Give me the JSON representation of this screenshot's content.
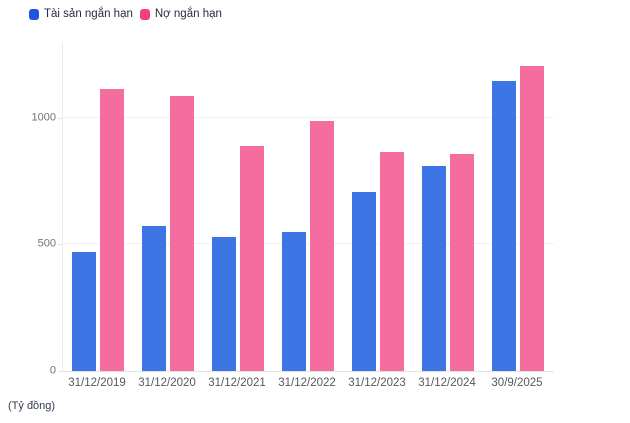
{
  "chart_data": {
    "type": "bar",
    "title": "",
    "unit": "(Tỷ đồng)",
    "categories": [
      "31/12/2019",
      "31/12/2020",
      "31/12/2021",
      "31/12/2022",
      "31/12/2023",
      "31/12/2024",
      "30/9/2025"
    ],
    "series": [
      {
        "name": "Tài sản ngắn hạn",
        "bar_color": "#3D76E4",
        "marker_color": "#2155DF",
        "values": [
          470,
          575,
          530,
          548,
          708,
          810,
          1148
        ]
      },
      {
        "name": "Nợ ngắn hạn",
        "bar_color": "#F46D9E",
        "marker_color": "#F2417F",
        "values": [
          1115,
          1085,
          890,
          988,
          866,
          858,
          1205
        ]
      }
    ],
    "yticks": [
      0,
      500,
      1000
    ],
    "ylim": [
      0,
      1300
    ],
    "grid": "horizontal",
    "legend_position": "top-left"
  }
}
